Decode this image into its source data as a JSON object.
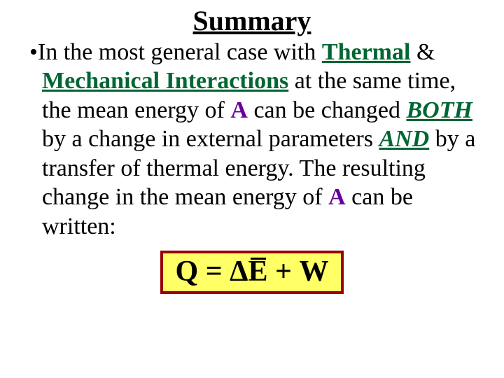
{
  "title": "Summary",
  "bullet_glyph": "•",
  "body": {
    "t1": "In the most general case with ",
    "thermal": "Thermal",
    "t2": " & ",
    "mechanical": "Mechanical Interactions",
    "t3": " at the same time, the mean energy of ",
    "A1": "A",
    "t4": " can be changed ",
    "both": "BOTH",
    "t5": " by a change in external parameters ",
    "and": "AND",
    "t6": " by a transfer of thermal energy. The resulting change in the mean energy of ",
    "A2": "A",
    "t7": " can be written:"
  },
  "equation": {
    "Q": "Q",
    "eq": " = ",
    "delta": "Δ",
    "E": "E",
    "plus": " + ",
    "W": "W"
  },
  "colors": {
    "green": "#006633",
    "purple": "#660099",
    "box_border": "#990000",
    "box_bg": "#ffff66",
    "bg": "#ffffff",
    "text": "#000000"
  },
  "fonts": {
    "title_size_pt": 30,
    "body_size_pt": 25,
    "eq_size_pt": 32,
    "family": "Times New Roman"
  }
}
